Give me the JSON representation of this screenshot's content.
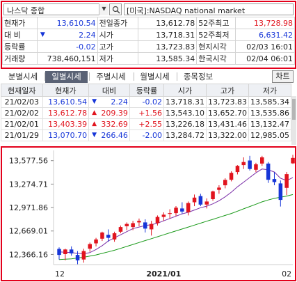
{
  "search": {
    "market": "나스닥 종합",
    "instrument": "[미국]:NASDAQ national market"
  },
  "info": {
    "rows": [
      [
        {
          "t": "현재가",
          "c": "lbl"
        },
        {
          "t": "13,610.54",
          "c": "num c-blue"
        },
        {
          "t": "전일종가",
          "c": "lbl"
        },
        {
          "t": "13,612.78",
          "c": "num"
        },
        {
          "t": "52주최고",
          "c": "lbl"
        },
        {
          "t": "13,728.98",
          "c": "num c-red"
        }
      ],
      [
        {
          "t": "대  비",
          "c": "lbl"
        },
        {
          "t": "2.24",
          "c": "num c-blue",
          "arrow": "▼"
        },
        {
          "t": "시가",
          "c": "lbl"
        },
        {
          "t": "13,718.31",
          "c": "num"
        },
        {
          "t": "52주최저",
          "c": "lbl"
        },
        {
          "t": "6,631.42",
          "c": "num c-blue"
        }
      ],
      [
        {
          "t": "등락률",
          "c": "lbl"
        },
        {
          "t": "-0.02",
          "c": "num c-blue"
        },
        {
          "t": "고가",
          "c": "lbl"
        },
        {
          "t": "13,723.83",
          "c": "num"
        },
        {
          "t": "현지시각",
          "c": "lbl"
        },
        {
          "t": "02/03 16:01",
          "c": "num"
        }
      ],
      [
        {
          "t": "거래량",
          "c": "lbl"
        },
        {
          "t": "738,460,151",
          "c": "num"
        },
        {
          "t": "저가",
          "c": "lbl"
        },
        {
          "t": "13,585.34",
          "c": "num"
        },
        {
          "t": "한국시각",
          "c": "lbl"
        },
        {
          "t": "02/04 06:01",
          "c": "num"
        }
      ]
    ]
  },
  "tabs": [
    "분별시세",
    "일별시세",
    "주별시세",
    "월별시세",
    "종목정보"
  ],
  "active_tab": 1,
  "chart_button": "차트",
  "history": {
    "headers": [
      "현재일자",
      "현재가",
      "대비",
      "등락률",
      "시가",
      "고가",
      "저가"
    ],
    "rows": [
      {
        "date": "21/02/03",
        "close": "13,610.54",
        "close_c": "c-blue",
        "arrow": "▼",
        "arrow_c": "c-blue",
        "change": "2.24",
        "change_c": "c-blue",
        "rate": "-0.02",
        "rate_c": "c-blue",
        "open": "13,718.31",
        "high": "13,723.83",
        "low": "13,585.34"
      },
      {
        "date": "21/02/02",
        "close": "13,612.78",
        "close_c": "c-red",
        "arrow": "▲",
        "arrow_c": "c-red",
        "change": "209.39",
        "change_c": "c-red",
        "rate": "+1.56",
        "rate_c": "c-red",
        "open": "13,543.10",
        "high": "13,652.70",
        "low": "13,535.86"
      },
      {
        "date": "21/02/01",
        "close": "13,403.39",
        "close_c": "c-red",
        "arrow": "▲",
        "arrow_c": "c-red",
        "change": "332.69",
        "change_c": "c-red",
        "rate": "+2.55",
        "rate_c": "c-red",
        "open": "13,226.18",
        "high": "13,431.46",
        "low": "13,132.47"
      },
      {
        "date": "21/01/29",
        "close": "13,070.70",
        "close_c": "c-blue",
        "arrow": "▼",
        "arrow_c": "c-blue",
        "change": "266.46",
        "change_c": "c-blue",
        "rate": "-2.00",
        "rate_c": "c-blue",
        "open": "13,284.72",
        "high": "13,322.00",
        "low": "12,985.05"
      }
    ]
  },
  "chart_data": {
    "type": "candlestick",
    "y_ticks": [
      "13,577.56",
      "13,274.71",
      "12,971.86",
      "12,669.01",
      "12,366.16"
    ],
    "y_tick_values": [
      13577.56,
      13274.71,
      12971.86,
      12669.01,
      12366.16
    ],
    "x_labels": [
      {
        "text": "12",
        "index": 0
      },
      {
        "text": "2021/01",
        "index": 17
      },
      {
        "text": "02",
        "index": 37
      }
    ],
    "up_color": "#e1141e",
    "down_color": "#1736d8",
    "ma_short_color": "#7b2fa8",
    "ma_long_color": "#1a9a1a",
    "candles": [
      {
        "o": 12437,
        "h": 12458,
        "l": 12300,
        "c": 12360
      },
      {
        "o": 12370,
        "h": 12440,
        "l": 12290,
        "c": 12430
      },
      {
        "o": 12430,
        "h": 12470,
        "l": 12350,
        "c": 12380
      },
      {
        "o": 12360,
        "h": 12410,
        "l": 12240,
        "c": 12290
      },
      {
        "o": 12300,
        "h": 12440,
        "l": 12260,
        "c": 12410
      },
      {
        "o": 12440,
        "h": 12520,
        "l": 12400,
        "c": 12500
      },
      {
        "o": 12510,
        "h": 12580,
        "l": 12470,
        "c": 12560
      },
      {
        "o": 12570,
        "h": 12660,
        "l": 12540,
        "c": 12650
      },
      {
        "o": 12620,
        "h": 12690,
        "l": 12530,
        "c": 12580
      },
      {
        "o": 12560,
        "h": 12660,
        "l": 12530,
        "c": 12640
      },
      {
        "o": 12660,
        "h": 12740,
        "l": 12640,
        "c": 12720
      },
      {
        "o": 12730,
        "h": 12780,
        "l": 12680,
        "c": 12760
      },
      {
        "o": 12720,
        "h": 12800,
        "l": 12680,
        "c": 12770
      },
      {
        "o": 12780,
        "h": 12830,
        "l": 12730,
        "c": 12800
      },
      {
        "o": 12780,
        "h": 12820,
        "l": 12650,
        "c": 12700
      },
      {
        "o": 12690,
        "h": 12800,
        "l": 12610,
        "c": 12760
      },
      {
        "o": 12770,
        "h": 12870,
        "l": 12740,
        "c": 12850
      },
      {
        "o": 12850,
        "h": 12910,
        "l": 12800,
        "c": 12880
      },
      {
        "o": 12890,
        "h": 12950,
        "l": 12830,
        "c": 12900
      },
      {
        "o": 12900,
        "h": 12990,
        "l": 12860,
        "c": 12970
      },
      {
        "o": 12960,
        "h": 13040,
        "l": 12890,
        "c": 12920
      },
      {
        "o": 12910,
        "h": 13050,
        "l": 12870,
        "c": 13030
      },
      {
        "o": 13040,
        "h": 13140,
        "l": 12990,
        "c": 13100
      },
      {
        "o": 13120,
        "h": 13150,
        "l": 12990,
        "c": 13010
      },
      {
        "o": 13010,
        "h": 13090,
        "l": 12960,
        "c": 13050
      },
      {
        "o": 13080,
        "h": 13190,
        "l": 13060,
        "c": 13180
      },
      {
        "o": 13200,
        "h": 13260,
        "l": 13150,
        "c": 13230
      },
      {
        "o": 13260,
        "h": 13350,
        "l": 13220,
        "c": 13330
      },
      {
        "o": 13330,
        "h": 13440,
        "l": 13310,
        "c": 13420
      },
      {
        "o": 13430,
        "h": 13520,
        "l": 13400,
        "c": 13510
      },
      {
        "o": 13520,
        "h": 13620,
        "l": 13470,
        "c": 13560
      },
      {
        "o": 13580,
        "h": 13640,
        "l": 13450,
        "c": 13470
      },
      {
        "o": 13460,
        "h": 13550,
        "l": 13430,
        "c": 13530
      },
      {
        "o": 13540,
        "h": 13640,
        "l": 13510,
        "c": 13620
      },
      {
        "o": 13540,
        "h": 13560,
        "l": 13290,
        "c": 13330
      },
      {
        "o": 13340,
        "h": 13430,
        "l": 13260,
        "c": 13300
      },
      {
        "o": 13284,
        "h": 13322,
        "l": 12985,
        "c": 13071
      },
      {
        "o": 13226,
        "h": 13431,
        "l": 13132,
        "c": 13403
      },
      {
        "o": 13543,
        "h": 13653,
        "l": 13536,
        "c": 13613
      }
    ],
    "ma_short": [
      12400,
      12395,
      12390,
      12380,
      12375,
      12390,
      12430,
      12480,
      12540,
      12580,
      12620,
      12660,
      12700,
      12720,
      12740,
      12750,
      12770,
      12800,
      12830,
      12860,
      12890,
      12910,
      12940,
      12970,
      12990,
      13020,
      13060,
      13110,
      13170,
      13240,
      13300,
      13360,
      13420,
      13470,
      13460,
      13430,
      13350,
      13320,
      13360
    ],
    "ma_long": [
      12300,
      12305,
      12310,
      12320,
      12330,
      12345,
      12360,
      12380,
      12400,
      12420,
      12445,
      12470,
      12495,
      12520,
      12545,
      12570,
      12595,
      12620,
      12645,
      12670,
      12695,
      12720,
      12745,
      12770,
      12795,
      12820,
      12845,
      12870,
      12895,
      12925,
      12955,
      12985,
      13015,
      13045,
      13070,
      13090,
      13105,
      13120,
      13140
    ]
  }
}
